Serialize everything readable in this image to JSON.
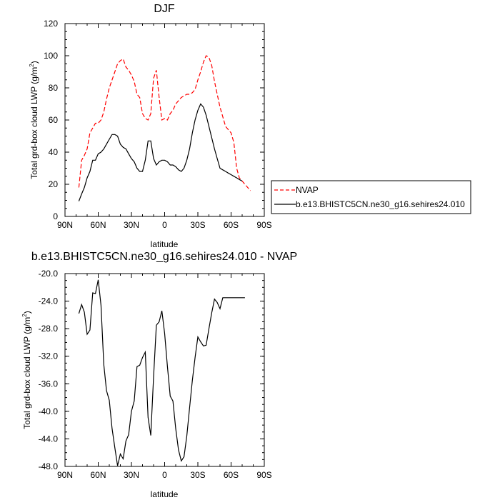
{
  "chart_data": [
    {
      "type": "line",
      "title": "DJF",
      "xlabel": "latitude",
      "ylabel": "Total grd-box cloud LWP (g/m",
      "ylabel_sup": "2",
      "ylabel_close": ")",
      "xlim": [
        -90,
        90
      ],
      "ylim": [
        0,
        120
      ],
      "x_ticks": [
        -90,
        -60,
        -30,
        0,
        30,
        60,
        90
      ],
      "x_tick_labels": [
        "90N",
        "60N",
        "30N",
        "0",
        "30S",
        "60S",
        "90S"
      ],
      "y_ticks": [
        0,
        20,
        40,
        60,
        80,
        100,
        120
      ],
      "y_tick_labels": [
        "0",
        "20",
        "40",
        "60",
        "80",
        "100",
        "120"
      ],
      "legend_position": "right",
      "series": [
        {
          "name": "NVAP",
          "color": "#ff0000",
          "dash": "dashed",
          "x": [
            -77.5,
            -75,
            -72.5,
            -70,
            -67.5,
            -65,
            -62.5,
            -60,
            -57.5,
            -55,
            -52.5,
            -50,
            -47.5,
            -45,
            -42.5,
            -40,
            -37.5,
            -35,
            -32.5,
            -30,
            -27.5,
            -25,
            -22.5,
            -20,
            -17.5,
            -15,
            -12.5,
            -10,
            -7.5,
            -5,
            -2.5,
            0,
            2.5,
            5,
            7.5,
            10,
            12.5,
            15,
            17.5,
            20,
            22.5,
            25,
            27.5,
            30,
            32.5,
            35,
            37.5,
            40,
            42.5,
            45,
            47.5,
            50,
            52.5,
            55,
            57.5,
            60,
            62.5,
            65,
            67.5,
            70,
            72.5,
            75,
            77.5,
            80
          ],
          "y": [
            18,
            35,
            38,
            42,
            52,
            55,
            58,
            58,
            60,
            65,
            73,
            80,
            85,
            90,
            95,
            97,
            98,
            93,
            91,
            88,
            84,
            76,
            74,
            64,
            61,
            60,
            64,
            86,
            91,
            74,
            60,
            61,
            60,
            64,
            66,
            70,
            72,
            74,
            75,
            76,
            76,
            77,
            79,
            85,
            90,
            96,
            100,
            99,
            94,
            84,
            76,
            68,
            62,
            56,
            54,
            52,
            46,
            30,
            24,
            22,
            20,
            18,
            16,
            14
          ],
          "visible_x_max": 77.5
        },
        {
          "name": "b.e13.BHISTC5CN.ne30_g16.sehires24.010",
          "color": "#000000",
          "dash": "solid",
          "x": [
            -77.5,
            -75,
            -72.5,
            -70,
            -67.5,
            -65,
            -62.5,
            -60,
            -57.5,
            -55,
            -52.5,
            -50,
            -47.5,
            -45,
            -42.5,
            -40,
            -37.5,
            -35,
            -32.5,
            -30,
            -27.5,
            -25,
            -22.5,
            -20,
            -17.5,
            -15,
            -12.5,
            -10,
            -7.5,
            -5,
            -2.5,
            0,
            2.5,
            5,
            7.5,
            10,
            12.5,
            15,
            17.5,
            20,
            22.5,
            25,
            27.5,
            30,
            32.5,
            35,
            37.5,
            40,
            42.5,
            45,
            47.5,
            50,
            52.5,
            55,
            57.5,
            60,
            62.5,
            65,
            67.5,
            70
          ],
          "y": [
            9.5,
            14,
            18,
            24,
            28,
            35,
            35,
            39,
            40,
            42,
            45,
            48,
            51,
            51,
            50,
            45,
            43,
            42,
            39,
            36,
            34,
            30,
            28,
            28,
            35,
            47,
            47,
            36,
            32,
            34,
            35,
            35,
            34,
            32,
            32,
            31,
            29,
            28,
            30,
            35,
            42,
            52,
            60,
            66,
            70,
            68,
            63,
            56,
            49,
            42,
            36,
            30,
            29,
            28,
            27,
            26,
            25,
            24,
            23,
            22
          ]
        }
      ]
    },
    {
      "type": "line",
      "title": "b.e13.BHISTC5CN.ne30_g16.sehires24.010 - NVAP",
      "xlabel": "latitude",
      "ylabel": "Total grd-box cloud LWP (g/m",
      "ylabel_sup": "2",
      "ylabel_close": ")",
      "xlim": [
        -90,
        90
      ],
      "ylim": [
        -48,
        -20
      ],
      "x_ticks": [
        -90,
        -60,
        -30,
        0,
        30,
        60,
        90
      ],
      "x_tick_labels": [
        "90N",
        "60N",
        "30N",
        "0",
        "30S",
        "60S",
        "90S"
      ],
      "y_ticks": [
        -48,
        -44,
        -40,
        -36,
        -32,
        -28,
        -24,
        -20
      ],
      "y_tick_labels": [
        "-48.0",
        "-44.0",
        "-40.0",
        "-36.0",
        "-32.0",
        "-28.0",
        "-24.0",
        "-20.0"
      ],
      "series": [
        {
          "color": "#000000",
          "dash": "solid",
          "x": [
            -77.5,
            -75,
            -72.5,
            -70,
            -67.5,
            -65,
            -62.5,
            -60,
            -57.5,
            -55,
            -52.5,
            -50,
            -47.5,
            -45,
            -42.5,
            -40,
            -37.5,
            -35,
            -32.5,
            -30,
            -27.5,
            -25,
            -22.5,
            -20,
            -17.5,
            -15,
            -12.5,
            -10,
            -7.5,
            -5,
            -2.5,
            0,
            2.5,
            5,
            7.5,
            10,
            12.5,
            15,
            17.5,
            20,
            22.5,
            25,
            27.5,
            30,
            32.5,
            35,
            37.5,
            40,
            42.5,
            45,
            47.5,
            50,
            52.5,
            55,
            57.5,
            60,
            62.5,
            65,
            67.5,
            70,
            72.5
          ],
          "y": [
            -25.8,
            -24.5,
            -25.6,
            -28.8,
            -28.2,
            -22.8,
            -22.9,
            -20.9,
            -24.6,
            -33.2,
            -37.0,
            -38.4,
            -42.5,
            -45.3,
            -47.9,
            -46.2,
            -46.9,
            -44.3,
            -43.4,
            -40.0,
            -38.5,
            -33.5,
            -33.3,
            -32.2,
            -31.4,
            -40.9,
            -43.5,
            -35.0,
            -27.5,
            -27.0,
            -25.4,
            -28.7,
            -33.5,
            -37.8,
            -38.5,
            -42.5,
            -45.6,
            -47.2,
            -46.6,
            -43.6,
            -39.5,
            -35.5,
            -32.2,
            -29.2,
            -29.9,
            -30.5,
            -30.4,
            -28.0,
            -25.7,
            -23.7,
            -24.2,
            -25.1,
            -23.5,
            -23.5,
            -23.5,
            -23.5,
            -23.5,
            -23.5,
            -23.5,
            -23.5,
            -23.5
          ],
          "visible_x_max": 72.5
        }
      ]
    }
  ]
}
